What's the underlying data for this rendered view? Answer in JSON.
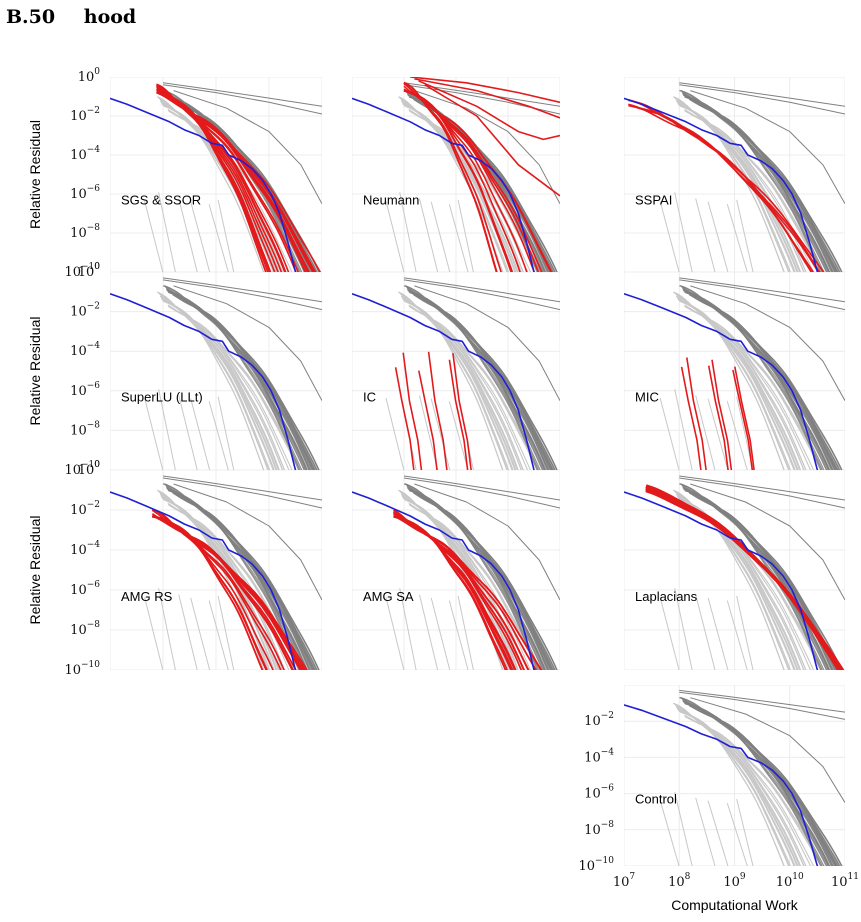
{
  "section": {
    "number": "B.50",
    "title": "hood"
  },
  "colors": {
    "highlight": "#e31a1c",
    "reference": "#1f1fd6",
    "background_dark": "#808080",
    "background_light": "#c8c8c8",
    "grid": "#ececec"
  },
  "chart_data": {
    "type": "line",
    "layout": "small-multiples",
    "ylabel": "Relative Residual",
    "xlabel": "Computational Work",
    "x_scale": "log",
    "y_scale": "log",
    "xlim": [
      10000000.0,
      100000000000.0
    ],
    "ylim": [
      1e-10,
      1
    ],
    "x_ticks": [
      {
        "base": "10",
        "exp": "7"
      },
      {
        "base": "10",
        "exp": "8"
      },
      {
        "base": "10",
        "exp": "9"
      },
      {
        "base": "10",
        "exp": "10"
      },
      {
        "base": "10",
        "exp": "11"
      }
    ],
    "y_ticks": [
      {
        "base": "10",
        "exp": "0"
      },
      {
        "base": "10",
        "exp": "−2"
      },
      {
        "base": "10",
        "exp": "−4"
      },
      {
        "base": "10",
        "exp": "−6"
      },
      {
        "base": "10",
        "exp": "−8"
      },
      {
        "base": "10",
        "exp": "−10"
      }
    ],
    "panels": [
      {
        "label": "SGS & SSOR",
        "highlight": "sgs"
      },
      {
        "label": "Neumann",
        "highlight": "neumann"
      },
      {
        "label": "SSPAI",
        "highlight": "sspai"
      },
      {
        "label": "SuperLU (LLt)",
        "highlight": "none"
      },
      {
        "label": "IC",
        "highlight": "ic"
      },
      {
        "label": "MIC",
        "highlight": "mic"
      },
      {
        "label": "AMG RS",
        "highlight": "amgrs"
      },
      {
        "label": "AMG SA",
        "highlight": "amgsa"
      },
      {
        "label": "Laplacians",
        "highlight": "laplacians"
      },
      {
        "label": "Control",
        "highlight": "none"
      }
    ]
  }
}
